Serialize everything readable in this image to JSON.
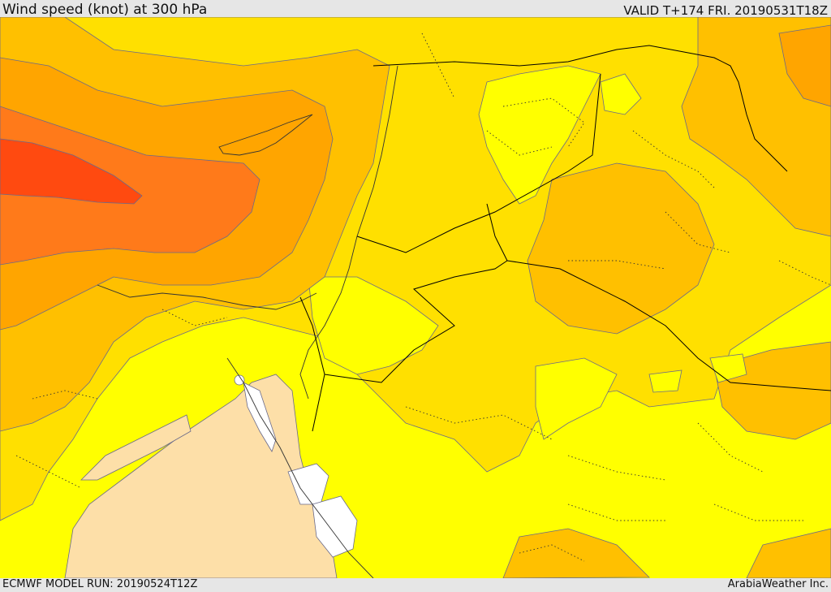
{
  "header": {
    "title": "Wind speed (knot) at 300 hPa",
    "valid_time": "VALID T+174 FRI. 20190531T18Z"
  },
  "footer": {
    "model_run": "ECMWF MODEL RUN: 20190524T12Z",
    "credit": "ArabiaWeather Inc."
  },
  "map": {
    "variable": "wind speed",
    "level": "300 hPa",
    "unit": "knot",
    "fill_colors": {
      "lowest": "#ffffff",
      "very_low": "#fddfa8",
      "low": "#ffff00",
      "mid_low": "#ffe000",
      "mid": "#ffc000",
      "mid_high": "#ffa500",
      "high": "#ff7a1a",
      "highest": "#ff4a10"
    },
    "line_colors": {
      "contour": "#6a6a8a",
      "border": "#000000"
    }
  }
}
